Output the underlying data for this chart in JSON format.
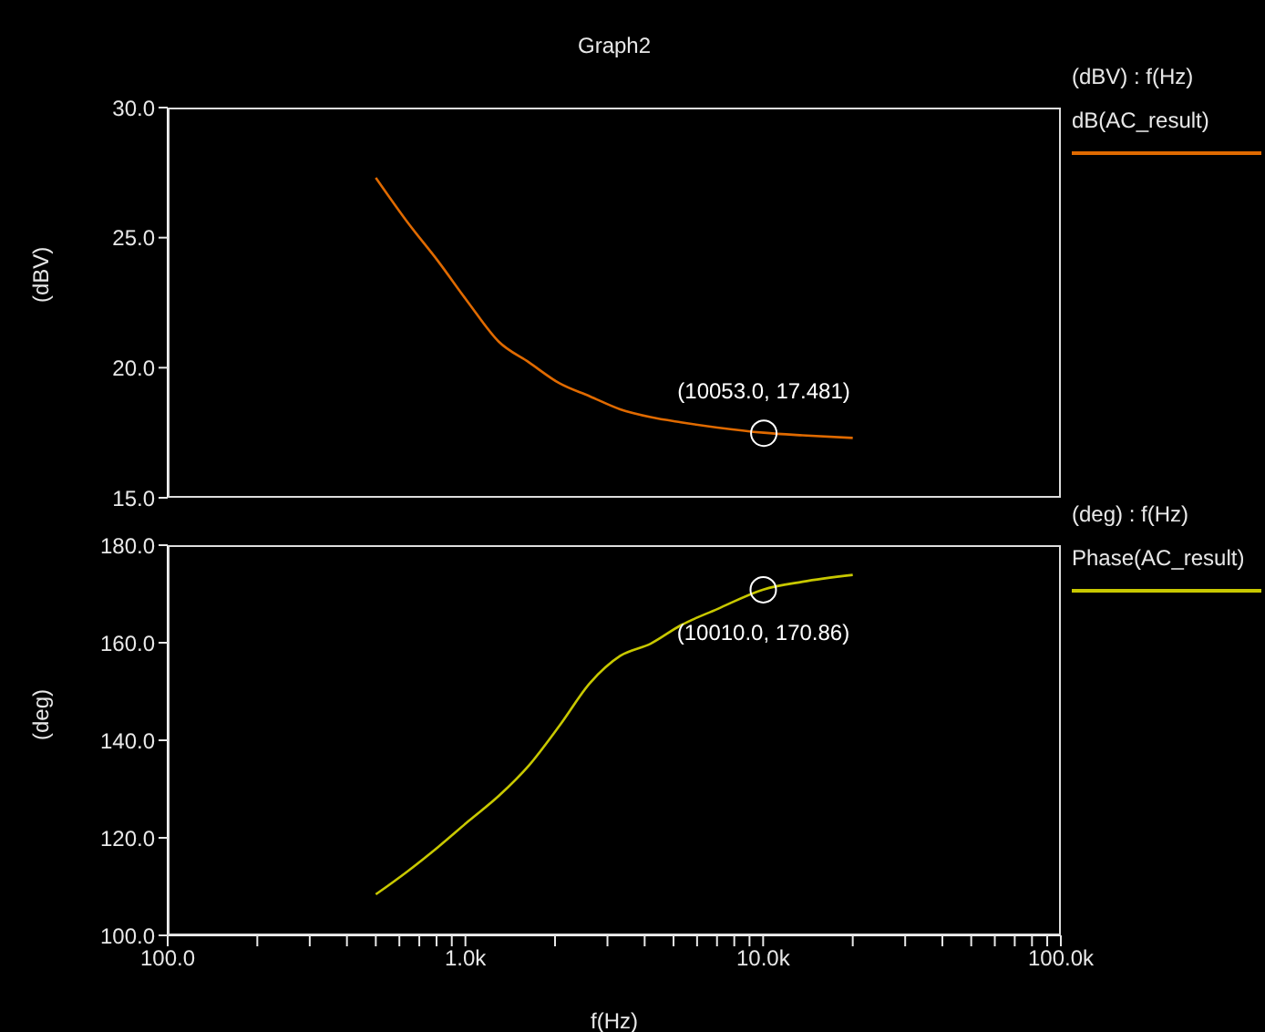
{
  "chart_data": [
    {
      "type": "line",
      "title": "Graph2",
      "ylabel": "(dBV)",
      "legend_title": "(dBV) : f(Hz)",
      "log": "x",
      "xlim": [
        100,
        100000
      ],
      "ylim": [
        15,
        30
      ],
      "yticks": [
        {
          "value": 15,
          "label": "15.0"
        },
        {
          "value": 20,
          "label": "20.0"
        },
        {
          "value": 25,
          "label": "25.0"
        },
        {
          "value": 30,
          "label": "30.0"
        }
      ],
      "tick_labels": "y",
      "legend": "top right",
      "x": [
        500,
        638,
        809,
        1023,
        1294,
        1637,
        2070,
        2618,
        3311,
        4188,
        5297,
        7015,
        10053,
        13550,
        20000
      ],
      "series": [
        {
          "name": "dB(AC_result)",
          "color": "#e06a00",
          "values": [
            27.3,
            25.6,
            24.1,
            22.5,
            21.0,
            20.2,
            19.4,
            18.9,
            18.4,
            18.1,
            17.9,
            17.7,
            17.5,
            17.4,
            17.3
          ]
        }
      ],
      "annotations": [
        {
          "text": "(10053.0, 17.481)",
          "x": 10053,
          "y": 17.481
        }
      ]
    },
    {
      "type": "line",
      "xlabel": "f(Hz)",
      "ylabel": "(deg)",
      "legend_title": "(deg) : f(Hz)",
      "log": "x",
      "xlim": [
        100,
        100000
      ],
      "ylim": [
        100,
        180
      ],
      "xticks": [
        {
          "value": 100,
          "label": "100.0"
        },
        {
          "value": 200,
          "label": null
        },
        {
          "value": 300,
          "label": null
        },
        {
          "value": 400,
          "label": null
        },
        {
          "value": 500,
          "label": null
        },
        {
          "value": 600,
          "label": null
        },
        {
          "value": 700,
          "label": null
        },
        {
          "value": 800,
          "label": null
        },
        {
          "value": 900,
          "label": null
        },
        {
          "value": 1000,
          "label": "1.0k"
        },
        {
          "value": 2000,
          "label": null
        },
        {
          "value": 3000,
          "label": null
        },
        {
          "value": 4000,
          "label": null
        },
        {
          "value": 5000,
          "label": null
        },
        {
          "value": 6000,
          "label": null
        },
        {
          "value": 7000,
          "label": null
        },
        {
          "value": 8000,
          "label": null
        },
        {
          "value": 9000,
          "label": null
        },
        {
          "value": 10000,
          "label": "10.0k"
        },
        {
          "value": 20000,
          "label": null
        },
        {
          "value": 30000,
          "label": null
        },
        {
          "value": 40000,
          "label": null
        },
        {
          "value": 50000,
          "label": null
        },
        {
          "value": 60000,
          "label": null
        },
        {
          "value": 70000,
          "label": null
        },
        {
          "value": 80000,
          "label": null
        },
        {
          "value": 90000,
          "label": null
        },
        {
          "value": 100000,
          "label": "100.0k"
        }
      ],
      "yticks": [
        {
          "value": 100,
          "label": "100.0"
        },
        {
          "value": 120,
          "label": "120.0"
        },
        {
          "value": 140,
          "label": "140.0"
        },
        {
          "value": 160,
          "label": "160.0"
        },
        {
          "value": 180,
          "label": "180.0"
        }
      ],
      "legend": "top right",
      "x": [
        500,
        638,
        809,
        1023,
        1294,
        1637,
        2070,
        2618,
        3311,
        4188,
        5297,
        7015,
        10010,
        13550,
        20000
      ],
      "series": [
        {
          "name": "Phase(AC_result)",
          "color": "#c8c800",
          "values": [
            108.4,
            113.1,
            118.1,
            123.4,
            128.6,
            134.9,
            143.0,
            151.7,
            157.3,
            159.8,
            163.6,
            166.9,
            170.9,
            172.5,
            173.9
          ]
        }
      ],
      "annotations": [
        {
          "text": "(10010.0, 170.86)",
          "x": 10010,
          "y": 170.86
        }
      ]
    }
  ]
}
